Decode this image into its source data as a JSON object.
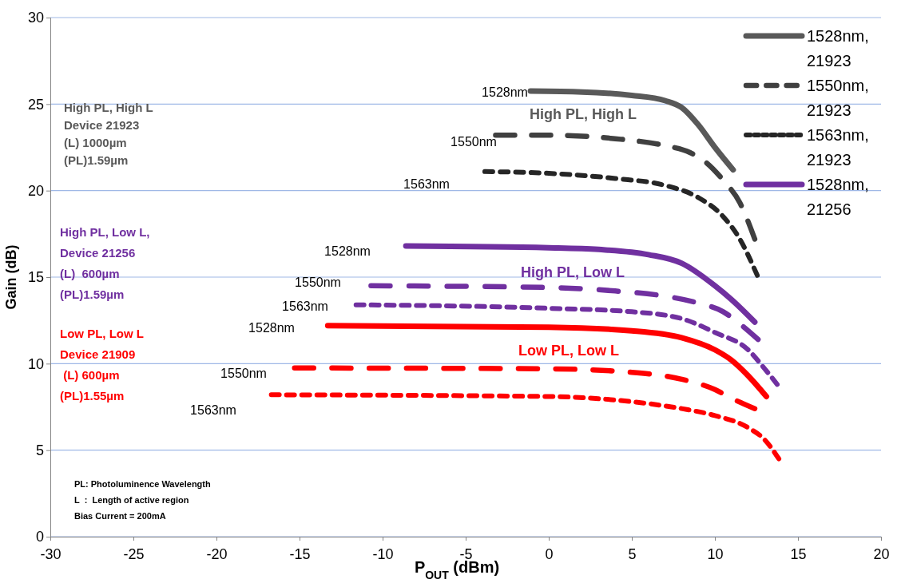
{
  "chart_data": {
    "type": "line",
    "xlabel": "P$_{OUT}$ (dBm)",
    "ylabel": "Gain (dB)",
    "xlim": [
      -30,
      20
    ],
    "xticks": [
      -30,
      -25,
      -20,
      -15,
      -10,
      -5,
      0,
      5,
      10,
      15,
      20
    ],
    "ylim": [
      0,
      30
    ],
    "yticks": [
      0,
      5,
      10,
      15,
      20,
      25,
      30
    ],
    "grid": "y",
    "legend": "top right",
    "series": [
      {
        "name": "1528nm, 21923",
        "color": "#595959",
        "line_style": "solid",
        "x": [
          -1.1,
          2,
          5,
          7,
          8,
          9,
          10,
          11.1
        ],
        "values": [
          25.75,
          25.7,
          25.5,
          25.2,
          24.8,
          23.8,
          22.5,
          21.2
        ]
      },
      {
        "name": "1550nm, 21923",
        "color": "#404040",
        "line_style": "dashed",
        "x": [
          -3.2,
          0,
          4,
          7,
          8.5,
          9.5,
          10.5,
          11.5,
          12.4
        ],
        "values": [
          23.2,
          23.2,
          23,
          22.6,
          22.2,
          21.6,
          20.6,
          19.3,
          17.2
        ]
      },
      {
        "name": "1563nm, 21923",
        "color": "#262626",
        "line_style": "dotted",
        "x": [
          -3.85,
          0,
          4,
          7,
          9,
          10.5,
          11.5,
          12.55
        ],
        "values": [
          21.1,
          21,
          20.7,
          20.3,
          19.6,
          18.5,
          17.2,
          15.1
        ]
      },
      {
        "name": "1528nm, 21256",
        "color": "#7030a0",
        "line_style": "solid",
        "x": [
          -8.6,
          0,
          3,
          6,
          8,
          10,
          11,
          12.4
        ],
        "values": [
          16.8,
          16.7,
          16.6,
          16.3,
          15.8,
          14.5,
          13.7,
          12.4
        ]
      },
      {
        "color": "#7030a0",
        "line_style": "dashed",
        "x": [
          -10.7,
          0,
          4,
          7,
          9,
          10.5,
          11.5,
          12.6
        ],
        "values": [
          14.5,
          14.4,
          14.2,
          13.9,
          13.5,
          13,
          12.3,
          11.4
        ]
      },
      {
        "color": "#7030a0",
        "line_style": "dotted",
        "x": [
          -11.6,
          0,
          5,
          8,
          10,
          12,
          13,
          13.75
        ],
        "values": [
          13.4,
          13.2,
          13,
          12.6,
          11.8,
          10.8,
          9.7,
          8.8
        ]
      },
      {
        "color": "#ff0000",
        "line_style": "solid",
        "x": [
          -13.3,
          0,
          5,
          8,
          10,
          11,
          12,
          13.1
        ],
        "values": [
          12.2,
          12.1,
          11.9,
          11.5,
          10.8,
          10.2,
          9.3,
          8.1
        ]
      },
      {
        "color": "#ff0000",
        "line_style": "dashed",
        "x": [
          -15.3,
          0,
          5,
          8,
          10,
          11,
          12.4
        ],
        "values": [
          9.75,
          9.7,
          9.5,
          9.1,
          8.5,
          8,
          7.4
        ]
      },
      {
        "color": "#ff0000",
        "line_style": "dotted",
        "x": [
          -16.7,
          0,
          5,
          8,
          10,
          12,
          13,
          13.85
        ],
        "values": [
          8.2,
          8.1,
          7.8,
          7.4,
          7,
          6.3,
          5.6,
          4.5
        ]
      }
    ],
    "annotations": [
      "1528nm",
      "1550nm",
      "1563nm",
      "1528nm",
      "1550nm",
      "1563nm",
      "1528nm",
      "1550nm",
      "1563nm",
      "High PL, High L",
      "High PL, Low L",
      "Low PL, Low L",
      "High PL, High L\nDevice 21923\n(L) 1000µm\n(PL)1.59µm",
      "High PL, Low L,\nDevice 21256\n(L)  600µm\n(PL)1.59µm",
      "Low PL, Low L\nDevice 21909\n (L) 600µm\n(PL)1.55µm",
      "PL: Photoluminence Wavelength\nL  :  Length of active region\nBias Current = 200mA"
    ]
  }
}
